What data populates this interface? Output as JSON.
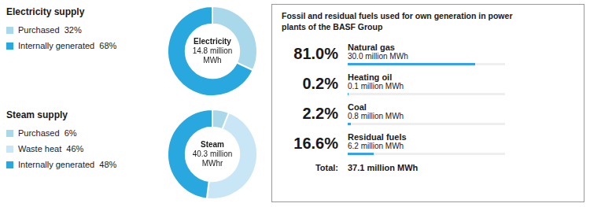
{
  "chart_data": [
    {
      "type": "doughnut",
      "title": "Electricity supply",
      "categories": [
        "Purchased  32%",
        "Internally generated  68%"
      ],
      "values": [
        32,
        68
      ],
      "colors": [
        "#a8d8ea",
        "#29a8e0"
      ],
      "center_label": [
        "Electricity",
        "14.8 million",
        "MWh"
      ]
    },
    {
      "type": "doughnut",
      "title": "Steam supply",
      "categories": [
        "Purchased  6%",
        "Waste heat  46%",
        "Internally generated  48%"
      ],
      "values": [
        6,
        46,
        48
      ],
      "colors": [
        "#a8d8ea",
        "#c8e6f5",
        "#29a8e0"
      ],
      "center_label": [
        "Steam",
        "40.3 million",
        "MWhr"
      ]
    },
    {
      "type": "table",
      "title": "Fossil and residual fuels used for own generation in power\nplants of the BASF Group",
      "categories": [
        "Natural gas",
        "Heating oil",
        "Coal",
        "Residual fuels"
      ],
      "values": [
        81.0,
        0.2,
        2.2,
        16.6
      ],
      "value_labels": [
        "81.0%",
        "0.2%",
        "2.2%",
        "16.6%"
      ],
      "sublabels": [
        "30.0 million MWh",
        "0.1 million MWh",
        "0.8 million MWh",
        "6.2 million MWh"
      ],
      "total_label": "Total:",
      "total_value": "37.1 million MWh"
    }
  ]
}
